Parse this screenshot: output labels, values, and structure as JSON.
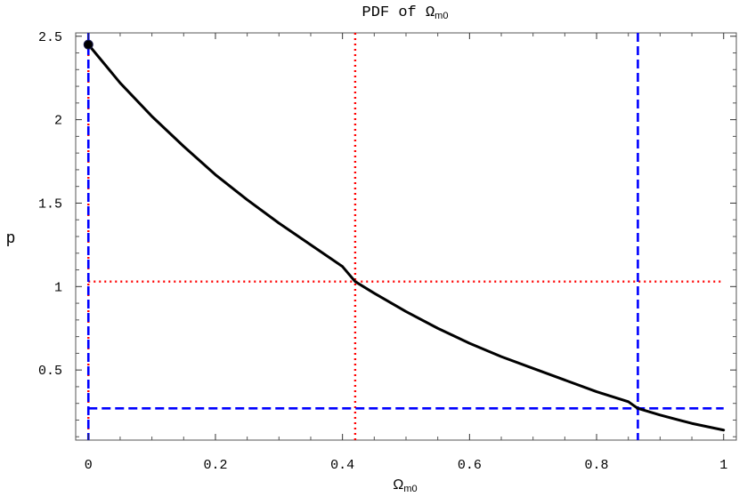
{
  "chart_data": {
    "type": "line",
    "title": "PDF of Ω",
    "title_sub": "m0",
    "xlabel": "Ω",
    "xlabel_sub": "m0",
    "ylabel": "p",
    "xlim": [
      -0.02,
      1.02
    ],
    "ylim": [
      0.08,
      2.52
    ],
    "xticks": [
      0,
      0.2,
      0.4,
      0.6,
      0.8,
      1
    ],
    "xtick_labels": [
      "0",
      "0.2",
      "0.4",
      "0.6",
      "0.8",
      "1"
    ],
    "yticks": [
      0.5,
      1,
      1.5,
      2,
      2.5
    ],
    "ytick_labels": [
      "0.5",
      "1",
      "1.5",
      "2",
      "2.5"
    ],
    "grid": false,
    "series": [
      {
        "color": "#000000",
        "style": "solid",
        "x": [
          0,
          0.05,
          0.1,
          0.15,
          0.2,
          0.25,
          0.3,
          0.35,
          0.4,
          0.42,
          0.45,
          0.5,
          0.55,
          0.6,
          0.65,
          0.7,
          0.75,
          0.8,
          0.85,
          0.865,
          0.9,
          0.95,
          1
        ],
        "y": [
          2.45,
          2.22,
          2.02,
          1.84,
          1.67,
          1.52,
          1.38,
          1.25,
          1.12,
          1.03,
          0.96,
          0.85,
          0.75,
          0.66,
          0.58,
          0.51,
          0.44,
          0.37,
          0.31,
          0.27,
          0.23,
          0.18,
          0.14
        ]
      }
    ],
    "marker_point": {
      "x": 0,
      "y": 2.45,
      "color": "#000000"
    },
    "reference_lines": [
      {
        "orientation": "vertical",
        "value": 0.42,
        "color": "#ff0000",
        "style": "dotted"
      },
      {
        "orientation": "horizontal",
        "value": 1.03,
        "color": "#ff0000",
        "style": "dotted"
      },
      {
        "orientation": "vertical",
        "value": 0,
        "color": "#ff0000",
        "style": "dotted"
      },
      {
        "orientation": "vertical",
        "value": 0,
        "color": "#0000ff",
        "style": "dashed"
      },
      {
        "orientation": "vertical",
        "value": 0.865,
        "color": "#0000ff",
        "style": "dashed"
      },
      {
        "orientation": "horizontal",
        "value": 0.27,
        "color": "#0000ff",
        "style": "dashed"
      }
    ]
  }
}
